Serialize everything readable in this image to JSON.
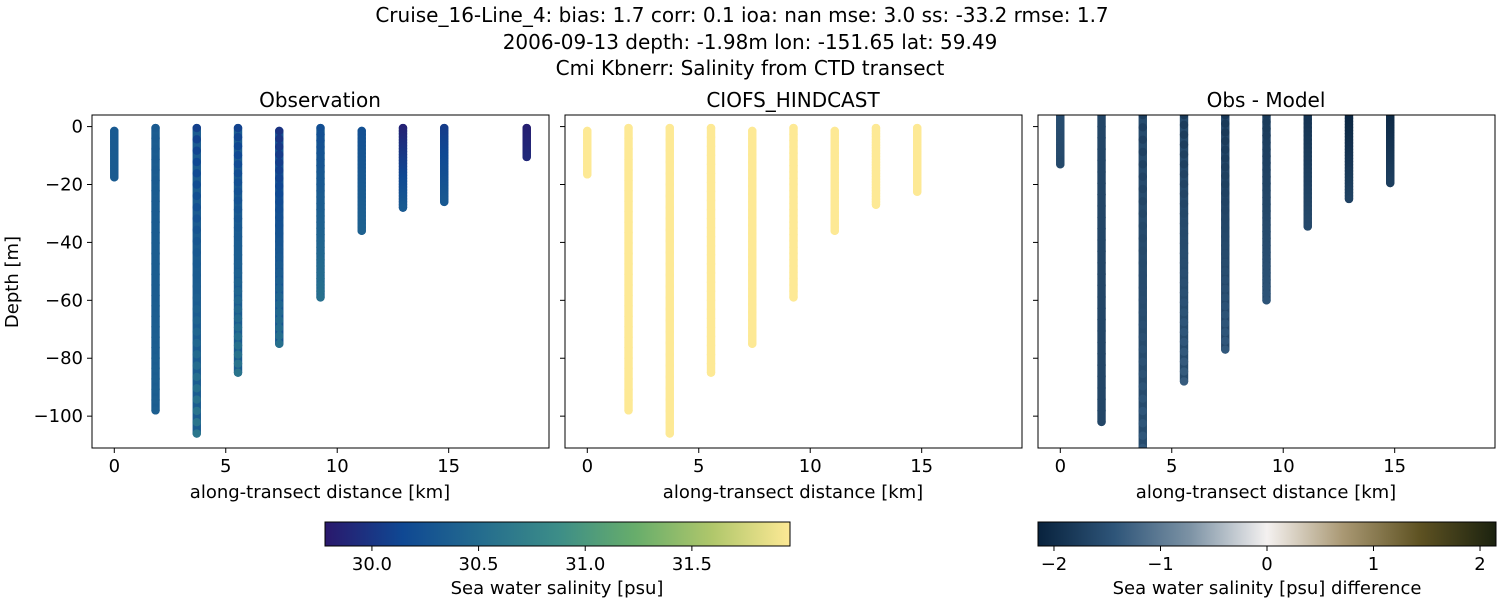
{
  "figure": {
    "title_lines": [
      "Cruise_16-Line_4: bias: 1.7  corr: 0.1  ioa: nan  mse: 3.0  ss: -33.2  rmse: 1.7",
      "2006-09-13 depth: -1.98m lon: -151.65 lat: 59.49",
      "Cmi Kbnerr: Salinity from CTD transect"
    ]
  },
  "chart_data": [
    {
      "type": "scatter",
      "title": "Observation",
      "xlabel": "along-transect distance [km]",
      "ylabel": "Depth [m]",
      "xlim": [
        -1.0,
        19.5
      ],
      "ylim": [
        -111,
        4
      ],
      "xticks": [
        0,
        5,
        10,
        15
      ],
      "yticks": [
        0,
        -20,
        -40,
        -60,
        -80,
        -100
      ],
      "colormap": "haline",
      "clim": [
        29.78,
        31.96
      ],
      "profiles": [
        {
          "x": 0.0,
          "top": -1.5,
          "bottom": -17.5,
          "value_top": 30.32,
          "value_bottom": 30.34
        },
        {
          "x": 1.85,
          "top": -0.5,
          "bottom": -98.0,
          "value_top": 30.33,
          "value_bottom": 30.38
        },
        {
          "x": 3.7,
          "top": -0.5,
          "bottom": -106.0,
          "value_top": 30.08,
          "value_bottom": 30.62
        },
        {
          "x": 5.55,
          "top": -0.5,
          "bottom": -85.0,
          "value_top": 30.1,
          "value_bottom": 30.6
        },
        {
          "x": 7.4,
          "top": -1.5,
          "bottom": -75.0,
          "value_top": 29.98,
          "value_bottom": 30.55
        },
        {
          "x": 9.25,
          "top": -0.5,
          "bottom": -59.0,
          "value_top": 30.2,
          "value_bottom": 30.55
        },
        {
          "x": 11.1,
          "top": -1.5,
          "bottom": -36.0,
          "value_top": 30.22,
          "value_bottom": 30.4
        },
        {
          "x": 12.95,
          "top": -0.5,
          "bottom": -28.0,
          "value_top": 29.85,
          "value_bottom": 30.32
        },
        {
          "x": 14.8,
          "top": -0.5,
          "bottom": -26.0,
          "value_top": 30.05,
          "value_bottom": 30.3
        },
        {
          "x": 18.5,
          "top": -0.5,
          "bottom": -10.5,
          "value_top": 29.83,
          "value_bottom": 29.9
        }
      ]
    },
    {
      "type": "scatter",
      "title": "CIOFS_HINDCAST",
      "xlabel": "along-transect distance [km]",
      "ylabel": "",
      "xlim": [
        -1.0,
        19.5
      ],
      "ylim": [
        -111,
        4
      ],
      "xticks": [
        0,
        5,
        10,
        15
      ],
      "yticks": [
        0,
        -20,
        -40,
        -60,
        -80,
        -100
      ],
      "colormap": "haline",
      "clim": [
        29.78,
        31.96
      ],
      "profiles": [
        {
          "x": 0.0,
          "top": -1.5,
          "bottom": -16.5,
          "value_top": 31.96,
          "value_bottom": 31.96
        },
        {
          "x": 1.85,
          "top": -0.5,
          "bottom": -98.0,
          "value_top": 31.96,
          "value_bottom": 31.96
        },
        {
          "x": 3.7,
          "top": -0.5,
          "bottom": -106.0,
          "value_top": 31.96,
          "value_bottom": 31.96
        },
        {
          "x": 5.55,
          "top": -0.5,
          "bottom": -85.0,
          "value_top": 31.96,
          "value_bottom": 31.96
        },
        {
          "x": 7.4,
          "top": -1.5,
          "bottom": -75.0,
          "value_top": 31.96,
          "value_bottom": 31.96
        },
        {
          "x": 9.25,
          "top": -0.5,
          "bottom": -59.0,
          "value_top": 31.96,
          "value_bottom": 31.96
        },
        {
          "x": 11.1,
          "top": -1.5,
          "bottom": -36.0,
          "value_top": 31.96,
          "value_bottom": 31.96
        },
        {
          "x": 12.95,
          "top": -0.5,
          "bottom": -27.0,
          "value_top": 31.96,
          "value_bottom": 31.96
        },
        {
          "x": 14.8,
          "top": -0.5,
          "bottom": -22.5,
          "value_top": 31.96,
          "value_bottom": 31.96
        }
      ]
    },
    {
      "type": "scatter",
      "title": "Obs - Model",
      "xlabel": "along-transect distance [km]",
      "ylabel": "",
      "xlim": [
        -1.0,
        19.5
      ],
      "ylim": [
        -111,
        4
      ],
      "xticks": [
        0,
        5,
        10,
        15
      ],
      "yticks": [
        0,
        -20,
        -40,
        -60,
        -80,
        -100
      ],
      "colormap": "diff",
      "clim": [
        -2.15,
        2.15
      ],
      "profiles": [
        {
          "x": 0.0,
          "top": 4,
          "bottom": -13.0,
          "value_top": -1.55,
          "value_bottom": -1.6
        },
        {
          "x": 1.85,
          "top": 4,
          "bottom": -102.0,
          "value_top": -1.65,
          "value_bottom": -1.65
        },
        {
          "x": 3.7,
          "top": 4,
          "bottom": -111,
          "value_top": -1.75,
          "value_bottom": -1.4
        },
        {
          "x": 5.55,
          "top": 4,
          "bottom": -88.0,
          "value_top": -1.8,
          "value_bottom": -1.35
        },
        {
          "x": 7.4,
          "top": 4,
          "bottom": -77.0,
          "value_top": -1.85,
          "value_bottom": -1.4
        },
        {
          "x": 9.25,
          "top": 4,
          "bottom": -60.0,
          "value_top": -1.8,
          "value_bottom": -1.45
        },
        {
          "x": 11.1,
          "top": 4,
          "bottom": -34.5,
          "value_top": -1.9,
          "value_bottom": -1.6
        },
        {
          "x": 12.95,
          "top": 4,
          "bottom": -25.0,
          "value_top": -2.1,
          "value_bottom": -1.7
        },
        {
          "x": 14.8,
          "top": 4,
          "bottom": -19.5,
          "value_top": -2.05,
          "value_bottom": -1.75
        }
      ]
    }
  ],
  "colorbars": [
    {
      "label": "Sea water salinity [psu]",
      "colormap": "haline",
      "range": [
        29.78,
        31.96
      ],
      "ticks": [
        30.0,
        30.5,
        31.0,
        31.5
      ],
      "tick_labels": [
        "30.0",
        "30.5",
        "31.0",
        "31.5"
      ]
    },
    {
      "label": "Sea water salinity [psu] difference",
      "colormap": "diff",
      "range": [
        -2.15,
        2.15
      ],
      "ticks": [
        -2,
        -1,
        0,
        1,
        2
      ],
      "tick_labels": [
        "−2",
        "−1",
        "0",
        "1",
        "2"
      ]
    }
  ],
  "colors": {
    "haline_stops": [
      "#2a186c",
      "#0f4893",
      "#246c8e",
      "#3c8d88",
      "#67ad6b",
      "#b0c76b",
      "#fde995"
    ],
    "diff_stops": [
      "#08223d",
      "#2e5579",
      "#7d93a5",
      "#f4f1f0",
      "#a99873",
      "#5e5222",
      "#1b220f"
    ]
  }
}
